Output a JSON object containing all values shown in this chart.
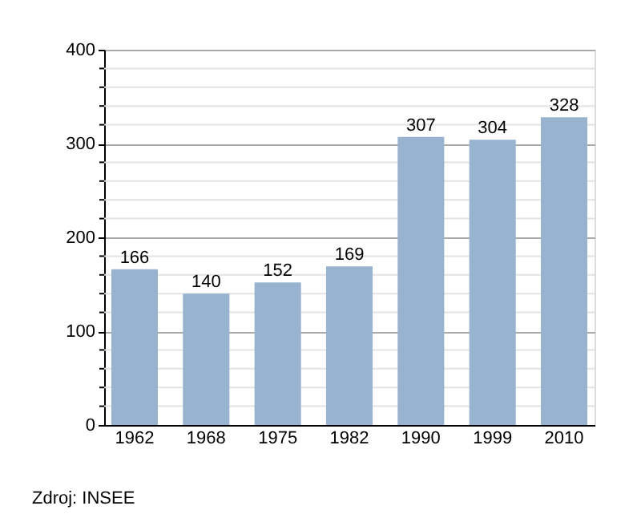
{
  "chart_data": {
    "type": "bar",
    "categories": [
      "1962",
      "1968",
      "1975",
      "1982",
      "1990",
      "1999",
      "2010"
    ],
    "values": [
      166,
      140,
      152,
      169,
      307,
      304,
      328
    ],
    "color": "#98b3cf",
    "ylim": [
      0,
      400
    ],
    "yticks": [
      0,
      {
        "value": 20,
        "label": null
      },
      {
        "value": 40,
        "label": null
      },
      {
        "value": 60,
        "label": null
      },
      {
        "value": 80,
        "label": null
      },
      100,
      {
        "value": 120,
        "label": null
      },
      {
        "value": 140,
        "label": null
      },
      {
        "value": 160,
        "label": null
      },
      {
        "value": 180,
        "label": null
      },
      200,
      {
        "value": 220,
        "label": null
      },
      {
        "value": 240,
        "label": null
      },
      {
        "value": 260,
        "label": null
      },
      {
        "value": 280,
        "label": null
      },
      300,
      {
        "value": 320,
        "label": null
      },
      {
        "value": 340,
        "label": null
      },
      {
        "value": 360,
        "label": null
      },
      {
        "value": 380,
        "label": null
      },
      400
    ],
    "grid": true,
    "data_labels": true,
    "annotations": [
      "Zdroj: INSEE"
    ]
  }
}
